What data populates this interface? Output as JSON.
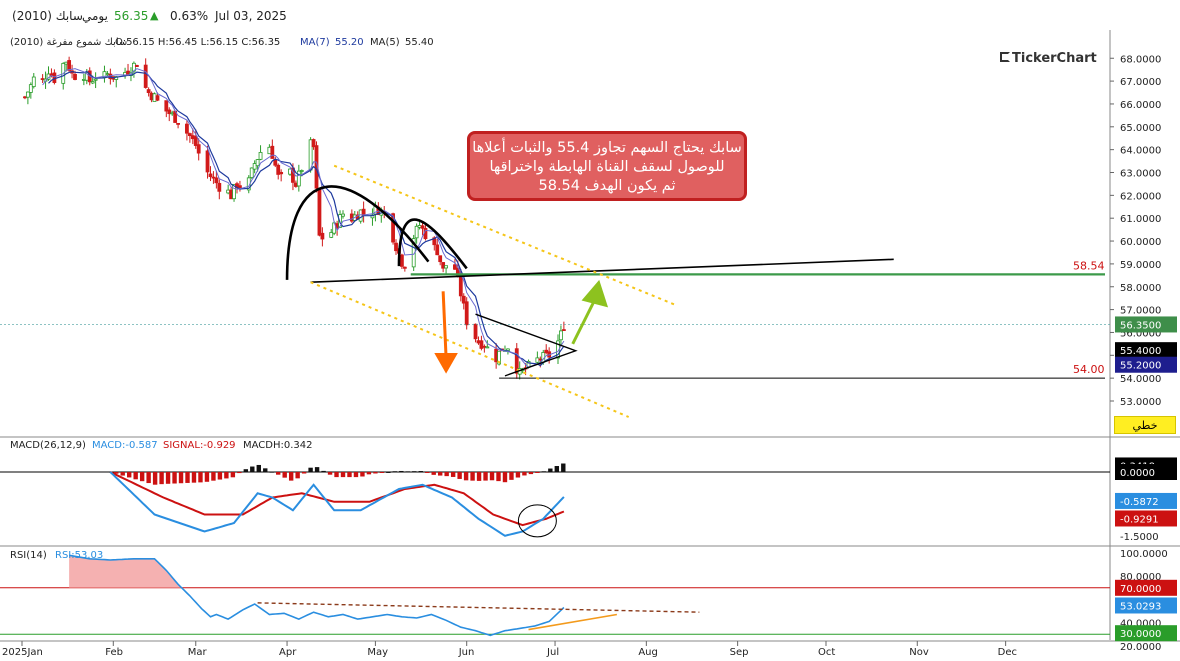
{
  "header": {
    "symbol": "سابك (2010)",
    "period": "يومي",
    "last": "56.35",
    "change_icon": "triangle-up-icon",
    "change_pct": "0.63%",
    "date": "Jul 03, 2025"
  },
  "colors": {
    "up": "#2a9d2a",
    "down": "#d11a1a",
    "ma7": "#1e3a9e",
    "ma5": "#6a6ad0",
    "macd": "#2a8ee0",
    "signal": "#cc1111",
    "rsi": "#2a8ee0",
    "channel": "#f5c518",
    "target": "#3c9a4a",
    "arrow_down": "#ff6a00",
    "arrow_up": "#8dc21f",
    "last_price_bg": "#3e8e4a"
  },
  "brand": "TickerChart",
  "annotation": {
    "line1": "سابك يحتاج السهم تجاوز 55.4 والثبات أعلاها",
    "line2": "للوصول لسقف القناة الهابطة واختراقها",
    "line3": "ثم يكون الهدف 58.54"
  },
  "mode_button": "خطي",
  "price_panel": {
    "legend": "سابك شموع مفرغة (2010)",
    "ohlc": "O:56.15  H:56.45  L:56.15  C:56.35",
    "ma7_label": "MA(7)",
    "ma7_value": "55.20",
    "ma5_label": "MA(5)",
    "ma5_value": "55.40",
    "axis_ticks": [
      "68.0000",
      "67.0000",
      "66.0000",
      "65.0000",
      "64.0000",
      "63.0000",
      "62.0000",
      "61.0000",
      "60.0000",
      "59.0000",
      "58.0000",
      "57.0000",
      "56.0000",
      "55.0000",
      "54.0000",
      "53.0000"
    ],
    "last_price_tag": "56.3500",
    "ma5_tag": "55.4000",
    "ma7_tag": "55.2000",
    "target_label": "58.54",
    "support_label": "54.00"
  },
  "macd_panel": {
    "legend": "MACD(26,12,9)",
    "macd_text": "MACD:-0.587",
    "signal_text": "SIGNAL:-0.929",
    "hist_text": "MACDH:0.342",
    "tags": [
      "0.3418",
      "0.0000",
      "-0.5872",
      "-0.9291"
    ],
    "axis_bottom": "-1.5000"
  },
  "rsi_panel": {
    "legend": "RSI(14)",
    "rsi_text": "RSI:53.03",
    "axis_ticks": [
      "100.0000",
      "80.0000",
      "40.0000",
      "20.0000"
    ],
    "tags": [
      "70.0000",
      "53.0293",
      "30.0000"
    ]
  },
  "time_axis": [
    "2025Jan",
    "Feb",
    "Mar",
    "Apr",
    "May",
    "Jun",
    "Jul",
    "Aug",
    "Sep",
    "Oct",
    "Nov",
    "Dec"
  ],
  "chart_data": {
    "type": "candlestick",
    "title": "سابك (2010)",
    "x_range": [
      "2025-01-01",
      "2025-12-31"
    ],
    "x_months": [
      "Jan",
      "Feb",
      "Mar",
      "Apr",
      "May",
      "Jun",
      "Jul",
      "Aug",
      "Sep",
      "Oct",
      "Nov",
      "Dec"
    ],
    "ylim": [
      52.3,
      68.5
    ],
    "close_path": [
      [
        1,
        66.3
      ],
      [
        3,
        66.8
      ],
      [
        5,
        67.4
      ],
      [
        7,
        67.0
      ],
      [
        9,
        67.5
      ],
      [
        11,
        67.1
      ],
      [
        13,
        67.6
      ],
      [
        15,
        67.9
      ],
      [
        17,
        67.3
      ],
      [
        19,
        67.2
      ],
      [
        21,
        67.3
      ],
      [
        23,
        67.0
      ],
      [
        25,
        67.2
      ],
      [
        27,
        67.1
      ],
      [
        29,
        67.3
      ],
      [
        31,
        67.2
      ],
      [
        33,
        67.1
      ],
      [
        35,
        67.4
      ],
      [
        37,
        67.6
      ],
      [
        39,
        67.8
      ],
      [
        41,
        66.9
      ],
      [
        43,
        66.5
      ],
      [
        45,
        66.3
      ],
      [
        47,
        65.9
      ],
      [
        49,
        65.7
      ],
      [
        51,
        65.5
      ],
      [
        53,
        65.3
      ],
      [
        55,
        64.9
      ],
      [
        57,
        64.6
      ],
      [
        59,
        64.2
      ],
      [
        61,
        63.5
      ],
      [
        63,
        63.0
      ],
      [
        65,
        62.7
      ],
      [
        67,
        62.4
      ],
      [
        69,
        62.3
      ],
      [
        71,
        62.0
      ],
      [
        73,
        62.5
      ],
      [
        75,
        62.3
      ],
      [
        77,
        62.6
      ],
      [
        79,
        63.4
      ],
      [
        81,
        63.9
      ],
      [
        83,
        64.5
      ],
      [
        85,
        63.8
      ],
      [
        87,
        62.8
      ],
      [
        89,
        62.7
      ],
      [
        91,
        63.0
      ],
      [
        93,
        62.5
      ],
      [
        95,
        63.2
      ],
      [
        97,
        64.3
      ],
      [
        99,
        64.1
      ],
      [
        101,
        60.2
      ],
      [
        103,
        60.1
      ],
      [
        105,
        60.4
      ],
      [
        107,
        60.8
      ],
      [
        109,
        61.2
      ],
      [
        111,
        60.9
      ],
      [
        113,
        61.1
      ],
      [
        115,
        61.3
      ],
      [
        117,
        61.0
      ],
      [
        119,
        61.3
      ],
      [
        121,
        61.4
      ],
      [
        123,
        61.2
      ],
      [
        125,
        60.6
      ],
      [
        127,
        59.8
      ],
      [
        129,
        59.1
      ],
      [
        131,
        58.9
      ],
      [
        133,
        60.2
      ],
      [
        135,
        60.7
      ],
      [
        137,
        60.3
      ],
      [
        139,
        59.8
      ],
      [
        141,
        59.6
      ],
      [
        143,
        58.7
      ],
      [
        145,
        59.2
      ],
      [
        147,
        58.8
      ],
      [
        149,
        57.7
      ],
      [
        151,
        56.5
      ],
      [
        153,
        56.0
      ],
      [
        155,
        55.6
      ],
      [
        157,
        55.5
      ],
      [
        159,
        55.1
      ],
      [
        161,
        54.9
      ],
      [
        163,
        55.3
      ],
      [
        165,
        55.4
      ],
      [
        167,
        54.7
      ],
      [
        169,
        54.2
      ],
      [
        171,
        54.4
      ],
      [
        173,
        54.6
      ],
      [
        175,
        54.8
      ],
      [
        177,
        54.9
      ],
      [
        179,
        55.0
      ],
      [
        181,
        55.3
      ],
      [
        183,
        55.9
      ],
      [
        184,
        56.35
      ]
    ],
    "ma7_last": 55.2,
    "ma5_last": 55.4,
    "last_close": 56.35,
    "levels": {
      "target": 58.54,
      "support": 54.0
    },
    "macd": {
      "params": "26,12,9",
      "last": {
        "macd": -0.587,
        "signal": -0.929,
        "hist": 0.342
      },
      "macd_path": [
        [
          30,
          0.0
        ],
        [
          45,
          -1.0
        ],
        [
          62,
          -1.4
        ],
        [
          72,
          -1.2
        ],
        [
          80,
          -0.5
        ],
        [
          85,
          -0.6
        ],
        [
          92,
          -0.9
        ],
        [
          99,
          -0.3
        ],
        [
          106,
          -0.9
        ],
        [
          115,
          -0.9
        ],
        [
          128,
          -0.4
        ],
        [
          136,
          -0.3
        ],
        [
          146,
          -0.6
        ],
        [
          155,
          -1.1
        ],
        [
          164,
          -1.5
        ],
        [
          170,
          -1.4
        ],
        [
          177,
          -1.1
        ],
        [
          184,
          -0.587
        ]
      ],
      "signal_path": [
        [
          30,
          0.0
        ],
        [
          48,
          -0.6
        ],
        [
          62,
          -1.0
        ],
        [
          75,
          -1.0
        ],
        [
          85,
          -0.6
        ],
        [
          95,
          -0.5
        ],
        [
          106,
          -0.7
        ],
        [
          118,
          -0.7
        ],
        [
          130,
          -0.4
        ],
        [
          140,
          -0.3
        ],
        [
          150,
          -0.5
        ],
        [
          160,
          -1.0
        ],
        [
          170,
          -1.25
        ],
        [
          178,
          -1.1
        ],
        [
          184,
          -0.929
        ]
      ]
    },
    "rsi": {
      "period": 14,
      "last": 53.03,
      "levels": [
        70,
        30
      ],
      "path": [
        [
          16,
          98
        ],
        [
          23,
          95
        ],
        [
          30,
          94
        ],
        [
          38,
          95
        ],
        [
          45,
          95
        ],
        [
          49,
          85
        ],
        [
          53,
          73
        ],
        [
          57,
          63
        ],
        [
          61,
          52
        ],
        [
          64,
          45
        ],
        [
          66,
          47
        ],
        [
          70,
          43
        ],
        [
          75,
          51
        ],
        [
          79,
          56
        ],
        [
          84,
          47
        ],
        [
          89,
          48
        ],
        [
          94,
          43
        ],
        [
          99,
          49
        ],
        [
          104,
          45
        ],
        [
          109,
          47
        ],
        [
          114,
          43
        ],
        [
          119,
          45
        ],
        [
          124,
          47
        ],
        [
          129,
          45
        ],
        [
          134,
          44
        ],
        [
          139,
          47
        ],
        [
          144,
          42
        ],
        [
          149,
          36
        ],
        [
          154,
          33
        ],
        [
          159,
          29
        ],
        [
          164,
          33
        ],
        [
          169,
          35
        ],
        [
          174,
          37
        ],
        [
          179,
          41
        ],
        [
          184,
          53
        ]
      ]
    }
  }
}
